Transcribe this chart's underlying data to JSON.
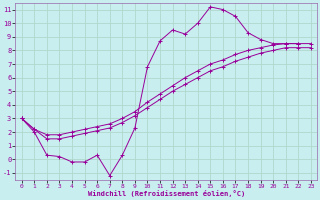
{
  "xlabel": "Windchill (Refroidissement éolien,°C)",
  "bg_color": "#c8eef0",
  "grid_color": "#b0d8cc",
  "line_color": "#990099",
  "spine_color": "#9966aa",
  "xlim": [
    -0.5,
    23.5
  ],
  "ylim": [
    -1.5,
    11.5
  ],
  "xticks": [
    0,
    1,
    2,
    3,
    4,
    5,
    6,
    7,
    8,
    9,
    10,
    11,
    12,
    13,
    14,
    15,
    16,
    17,
    18,
    19,
    20,
    21,
    22,
    23
  ],
  "yticks": [
    -1,
    0,
    1,
    2,
    3,
    4,
    5,
    6,
    7,
    8,
    9,
    10,
    11
  ],
  "line1_x": [
    0,
    1,
    2,
    3,
    4,
    5,
    6,
    7,
    8,
    9,
    10,
    11,
    12,
    13,
    14,
    15,
    16,
    17,
    18,
    19,
    20,
    21,
    22
  ],
  "line1_y": [
    3.0,
    2.0,
    0.3,
    0.2,
    -0.2,
    -0.2,
    0.3,
    -1.2,
    0.3,
    2.3,
    6.8,
    8.7,
    9.5,
    9.2,
    10.0,
    11.2,
    11.0,
    10.5,
    9.3,
    8.8,
    8.5,
    8.5,
    8.5
  ],
  "line2_x": [
    0,
    1,
    2,
    3,
    4,
    5,
    6,
    7,
    8,
    9,
    10,
    11,
    12,
    13,
    14,
    15,
    16,
    17,
    18,
    19,
    20,
    21,
    22,
    23
  ],
  "line2_y": [
    3.0,
    2.2,
    1.8,
    1.8,
    2.0,
    2.2,
    2.4,
    2.6,
    3.0,
    3.5,
    4.2,
    4.8,
    5.4,
    6.0,
    6.5,
    7.0,
    7.3,
    7.7,
    8.0,
    8.2,
    8.4,
    8.5,
    8.5,
    8.5
  ],
  "line3_x": [
    0,
    1,
    2,
    3,
    4,
    5,
    6,
    7,
    8,
    9,
    10,
    11,
    12,
    13,
    14,
    15,
    16,
    17,
    18,
    19,
    20,
    21,
    22,
    23
  ],
  "line3_y": [
    3.0,
    2.2,
    1.5,
    1.5,
    1.7,
    1.9,
    2.1,
    2.3,
    2.7,
    3.2,
    3.8,
    4.4,
    5.0,
    5.5,
    6.0,
    6.5,
    6.8,
    7.2,
    7.5,
    7.8,
    8.0,
    8.2,
    8.2,
    8.2
  ]
}
